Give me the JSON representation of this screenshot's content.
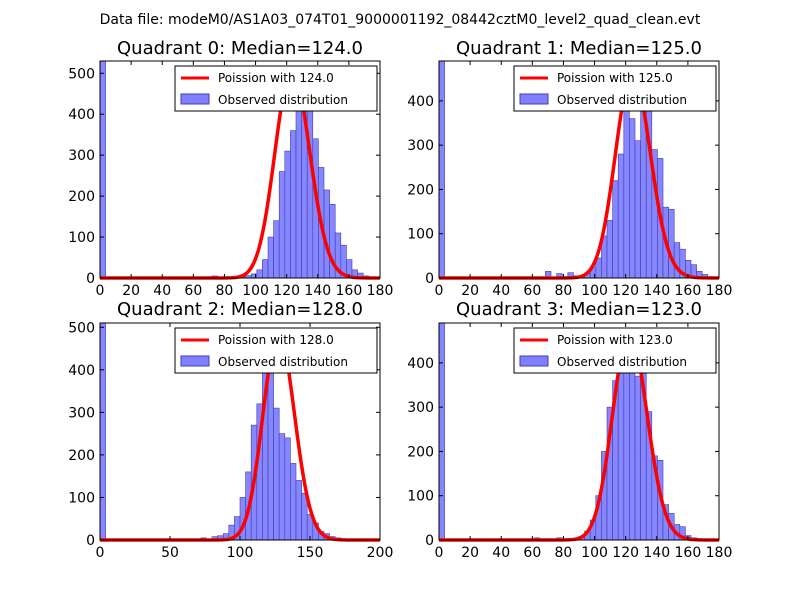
{
  "figure": {
    "suptitle": "Data file: modeM0/AS1A03_074T01_9000001192_08442cztM0_level2_quad_clean.evt"
  },
  "colors": {
    "bar_fill": "#7f7fff",
    "bar_edge": "#3f3fb0",
    "poisson_line": "#ff0000",
    "axis": "#000000"
  },
  "chart_data": [
    {
      "type": "bar",
      "title": "Quadrant 0: Median=124.0",
      "xlim": [
        0,
        180
      ],
      "ylim": [
        0,
        530
      ],
      "xticks": [
        0,
        20,
        40,
        60,
        80,
        100,
        120,
        140,
        160,
        180
      ],
      "xtick_labels": [
        "0",
        "20",
        "40",
        "60",
        "80",
        "100",
        "120",
        "140",
        "160",
        "180"
      ],
      "yticks": [
        0,
        100,
        200,
        300,
        400,
        500
      ],
      "ytick_labels": [
        "0",
        "100",
        "200",
        "300",
        "400",
        "500"
      ],
      "legend": {
        "location": "top-right",
        "line_label": "Poission with 124.0",
        "bar_label": "Observed distribution"
      },
      "bins": {
        "start": 0,
        "width": 3.6,
        "counts": [
          530,
          0,
          0,
          0,
          0,
          0,
          0,
          0,
          0,
          0,
          0,
          0,
          0,
          0,
          0,
          0,
          0,
          0,
          0,
          2,
          5,
          2,
          1,
          1,
          0,
          3,
          6,
          10,
          20,
          45,
          100,
          140,
          260,
          310,
          360,
          410,
          500,
          420,
          340,
          270,
          215,
          180,
          110,
          80,
          45,
          20,
          12,
          5,
          2,
          1
        ]
      },
      "poisson": {
        "mean": 124.0,
        "peak": 510
      }
    },
    {
      "type": "bar",
      "title": "Quadrant 1: Median=125.0",
      "xlim": [
        0,
        180
      ],
      "ylim": [
        0,
        490
      ],
      "xticks": [
        0,
        20,
        40,
        60,
        80,
        100,
        120,
        140,
        160,
        180
      ],
      "xtick_labels": [
        "0",
        "20",
        "40",
        "60",
        "80",
        "100",
        "120",
        "140",
        "160",
        "180"
      ],
      "yticks": [
        0,
        100,
        200,
        300,
        400
      ],
      "ytick_labels": [
        "0",
        "100",
        "200",
        "300",
        "400"
      ],
      "legend": {
        "location": "top-right",
        "line_label": "Poission with 125.0",
        "bar_label": "Observed distribution"
      },
      "bins": {
        "start": 0,
        "width": 3.6,
        "counts": [
          490,
          0,
          0,
          0,
          0,
          0,
          0,
          0,
          0,
          0,
          0,
          0,
          0,
          0,
          0,
          0,
          0,
          0,
          0,
          15,
          2,
          10,
          3,
          12,
          5,
          3,
          10,
          25,
          45,
          95,
          130,
          220,
          280,
          400,
          360,
          310,
          470,
          380,
          290,
          270,
          160,
          155,
          80,
          65,
          40,
          30,
          15,
          8,
          3,
          1
        ]
      },
      "poisson": {
        "mean": 125.0,
        "peak": 465
      }
    },
    {
      "type": "bar",
      "title": "Quadrant 2: Median=128.0",
      "xlim": [
        0,
        200
      ],
      "ylim": [
        0,
        510
      ],
      "xticks": [
        0,
        50,
        100,
        150,
        200
      ],
      "xtick_labels": [
        "0",
        "50",
        "100",
        "150",
        "200"
      ],
      "yticks": [
        0,
        100,
        200,
        300,
        400,
        500
      ],
      "ytick_labels": [
        "0",
        "100",
        "200",
        "300",
        "400",
        "500"
      ],
      "legend": {
        "location": "top-right",
        "line_label": "Poission with 128.0",
        "bar_label": "Observed distribution"
      },
      "bins": {
        "start": 0,
        "width": 4,
        "counts": [
          510,
          0,
          0,
          0,
          0,
          0,
          0,
          0,
          0,
          0,
          0,
          0,
          0,
          0,
          0,
          0,
          0,
          0,
          5,
          2,
          8,
          10,
          15,
          35,
          55,
          100,
          160,
          270,
          320,
          440,
          490,
          310,
          250,
          240,
          180,
          140,
          110,
          60,
          40,
          20,
          15,
          8,
          5,
          2,
          1,
          0,
          0,
          0,
          0,
          0
        ]
      },
      "poisson": {
        "mean": 128.0,
        "peak": 485
      }
    },
    {
      "type": "bar",
      "title": "Quadrant 3: Median=123.0",
      "xlim": [
        0,
        180
      ],
      "ylim": [
        0,
        490
      ],
      "xticks": [
        0,
        20,
        40,
        60,
        80,
        100,
        120,
        140,
        160,
        180
      ],
      "xtick_labels": [
        "0",
        "20",
        "40",
        "60",
        "80",
        "100",
        "120",
        "140",
        "160",
        "180"
      ],
      "yticks": [
        0,
        100,
        200,
        300,
        400
      ],
      "ytick_labels": [
        "0",
        "100",
        "200",
        "300",
        "400"
      ],
      "legend": {
        "location": "top-right",
        "line_label": "Poission with 123.0",
        "bar_label": "Observed distribution"
      },
      "bins": {
        "start": 0,
        "width": 3.6,
        "counts": [
          490,
          0,
          0,
          0,
          0,
          0,
          0,
          0,
          0,
          0,
          0,
          0,
          0,
          0,
          0,
          0,
          0,
          5,
          2,
          3,
          2,
          5,
          2,
          3,
          4,
          8,
          20,
          45,
          100,
          200,
          300,
          360,
          380,
          470,
          430,
          370,
          410,
          290,
          190,
          180,
          80,
          60,
          35,
          30,
          10,
          5,
          2,
          1,
          0,
          0
        ]
      },
      "poisson": {
        "mean": 123.0,
        "peak": 468
      }
    }
  ]
}
